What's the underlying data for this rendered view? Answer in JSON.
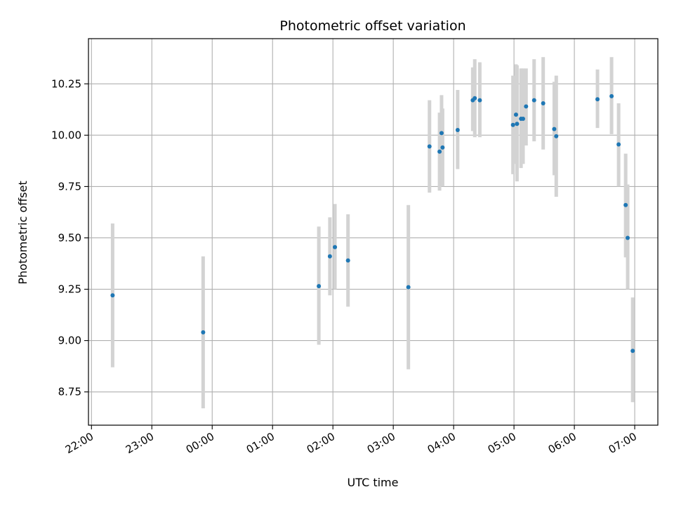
{
  "chart_data": {
    "type": "scatter",
    "title": "Photometric offset variation",
    "xlabel": "UTC time",
    "ylabel": "Photometric offset",
    "xlim": [
      "2023-01-01T21:57",
      "2023-01-02T07:23"
    ],
    "ylim": [
      8.588,
      10.47
    ],
    "x_ticks": [
      {
        "t": "2023-01-01T22:00",
        "label": "22:00"
      },
      {
        "t": "2023-01-01T23:00",
        "label": "23:00"
      },
      {
        "t": "2023-01-02T00:00",
        "label": "00:00"
      },
      {
        "t": "2023-01-02T01:00",
        "label": "01:00"
      },
      {
        "t": "2023-01-02T02:00",
        "label": "02:00"
      },
      {
        "t": "2023-01-02T03:00",
        "label": "03:00"
      },
      {
        "t": "2023-01-02T04:00",
        "label": "04:00"
      },
      {
        "t": "2023-01-02T05:00",
        "label": "05:00"
      },
      {
        "t": "2023-01-02T06:00",
        "label": "06:00"
      },
      {
        "t": "2023-01-02T07:00",
        "label": "07:00"
      }
    ],
    "y_ticks": [
      {
        "v": 8.75,
        "label": "8.75"
      },
      {
        "v": 9.0,
        "label": "9.00"
      },
      {
        "v": 9.25,
        "label": "9.25"
      },
      {
        "v": 9.5,
        "label": "9.50"
      },
      {
        "v": 9.75,
        "label": "9.75"
      },
      {
        "v": 10.0,
        "label": "10.00"
      },
      {
        "v": 10.25,
        "label": "10.25"
      }
    ],
    "grid": true,
    "marker_color": "#1f77b4",
    "errorbar_color": "#d3d3d3",
    "points": [
      {
        "t": "2023-01-01T22:21",
        "y": 9.22,
        "lo": 8.87,
        "hi": 9.57
      },
      {
        "t": "2023-01-01T23:51",
        "y": 9.04,
        "lo": 8.67,
        "hi": 9.41
      },
      {
        "t": "2023-01-02T01:46",
        "y": 9.265,
        "lo": 8.98,
        "hi": 9.555
      },
      {
        "t": "2023-01-02T01:57",
        "y": 9.41,
        "lo": 9.22,
        "hi": 9.6
      },
      {
        "t": "2023-01-02T02:02",
        "y": 9.455,
        "lo": 9.25,
        "hi": 9.665
      },
      {
        "t": "2023-01-02T02:15",
        "y": 9.39,
        "lo": 9.165,
        "hi": 9.615
      },
      {
        "t": "2023-01-02T03:15",
        "y": 9.26,
        "lo": 8.86,
        "hi": 9.66
      },
      {
        "t": "2023-01-02T03:36",
        "y": 9.945,
        "lo": 9.72,
        "hi": 10.17
      },
      {
        "t": "2023-01-02T03:46",
        "y": 9.92,
        "lo": 9.73,
        "hi": 10.11
      },
      {
        "t": "2023-01-02T03:48",
        "y": 10.01,
        "lo": 9.82,
        "hi": 10.195
      },
      {
        "t": "2023-01-02T03:49",
        "y": 9.94,
        "lo": 9.75,
        "hi": 10.13
      },
      {
        "t": "2023-01-02T04:04",
        "y": 10.025,
        "lo": 9.835,
        "hi": 10.22
      },
      {
        "t": "2023-01-02T04:19",
        "y": 10.17,
        "lo": 10.02,
        "hi": 10.33
      },
      {
        "t": "2023-01-02T04:21",
        "y": 10.18,
        "lo": 9.99,
        "hi": 10.37
      },
      {
        "t": "2023-01-02T04:26",
        "y": 10.17,
        "lo": 9.99,
        "hi": 10.355
      },
      {
        "t": "2023-01-02T04:59",
        "y": 10.05,
        "lo": 9.81,
        "hi": 10.29
      },
      {
        "t": "2023-01-02T05:02",
        "y": 10.1,
        "lo": 9.86,
        "hi": 10.345
      },
      {
        "t": "2023-01-02T05:03",
        "y": 10.055,
        "lo": 9.775,
        "hi": 10.34
      },
      {
        "t": "2023-01-02T05:07",
        "y": 10.08,
        "lo": 9.84,
        "hi": 10.325
      },
      {
        "t": "2023-01-02T05:09",
        "y": 10.08,
        "lo": 9.86,
        "hi": 10.325
      },
      {
        "t": "2023-01-02T05:12",
        "y": 10.14,
        "lo": 9.95,
        "hi": 10.325
      },
      {
        "t": "2023-01-02T05:20",
        "y": 10.17,
        "lo": 9.97,
        "hi": 10.37
      },
      {
        "t": "2023-01-02T05:29",
        "y": 10.155,
        "lo": 9.93,
        "hi": 10.38
      },
      {
        "t": "2023-01-02T05:40",
        "y": 10.03,
        "lo": 9.805,
        "hi": 10.26
      },
      {
        "t": "2023-01-02T05:42",
        "y": 9.995,
        "lo": 9.7,
        "hi": 10.29
      },
      {
        "t": "2023-01-02T06:23",
        "y": 10.175,
        "lo": 10.035,
        "hi": 10.32
      },
      {
        "t": "2023-01-02T06:37",
        "y": 10.19,
        "lo": 10.005,
        "hi": 10.38
      },
      {
        "t": "2023-01-02T06:44",
        "y": 9.955,
        "lo": 9.75,
        "hi": 10.155
      },
      {
        "t": "2023-01-02T06:51",
        "y": 9.66,
        "lo": 9.405,
        "hi": 9.91
      },
      {
        "t": "2023-01-02T06:53",
        "y": 9.5,
        "lo": 9.25,
        "hi": 9.76
      },
      {
        "t": "2023-01-02T06:58",
        "y": 8.95,
        "lo": 8.7,
        "hi": 9.21
      }
    ]
  }
}
